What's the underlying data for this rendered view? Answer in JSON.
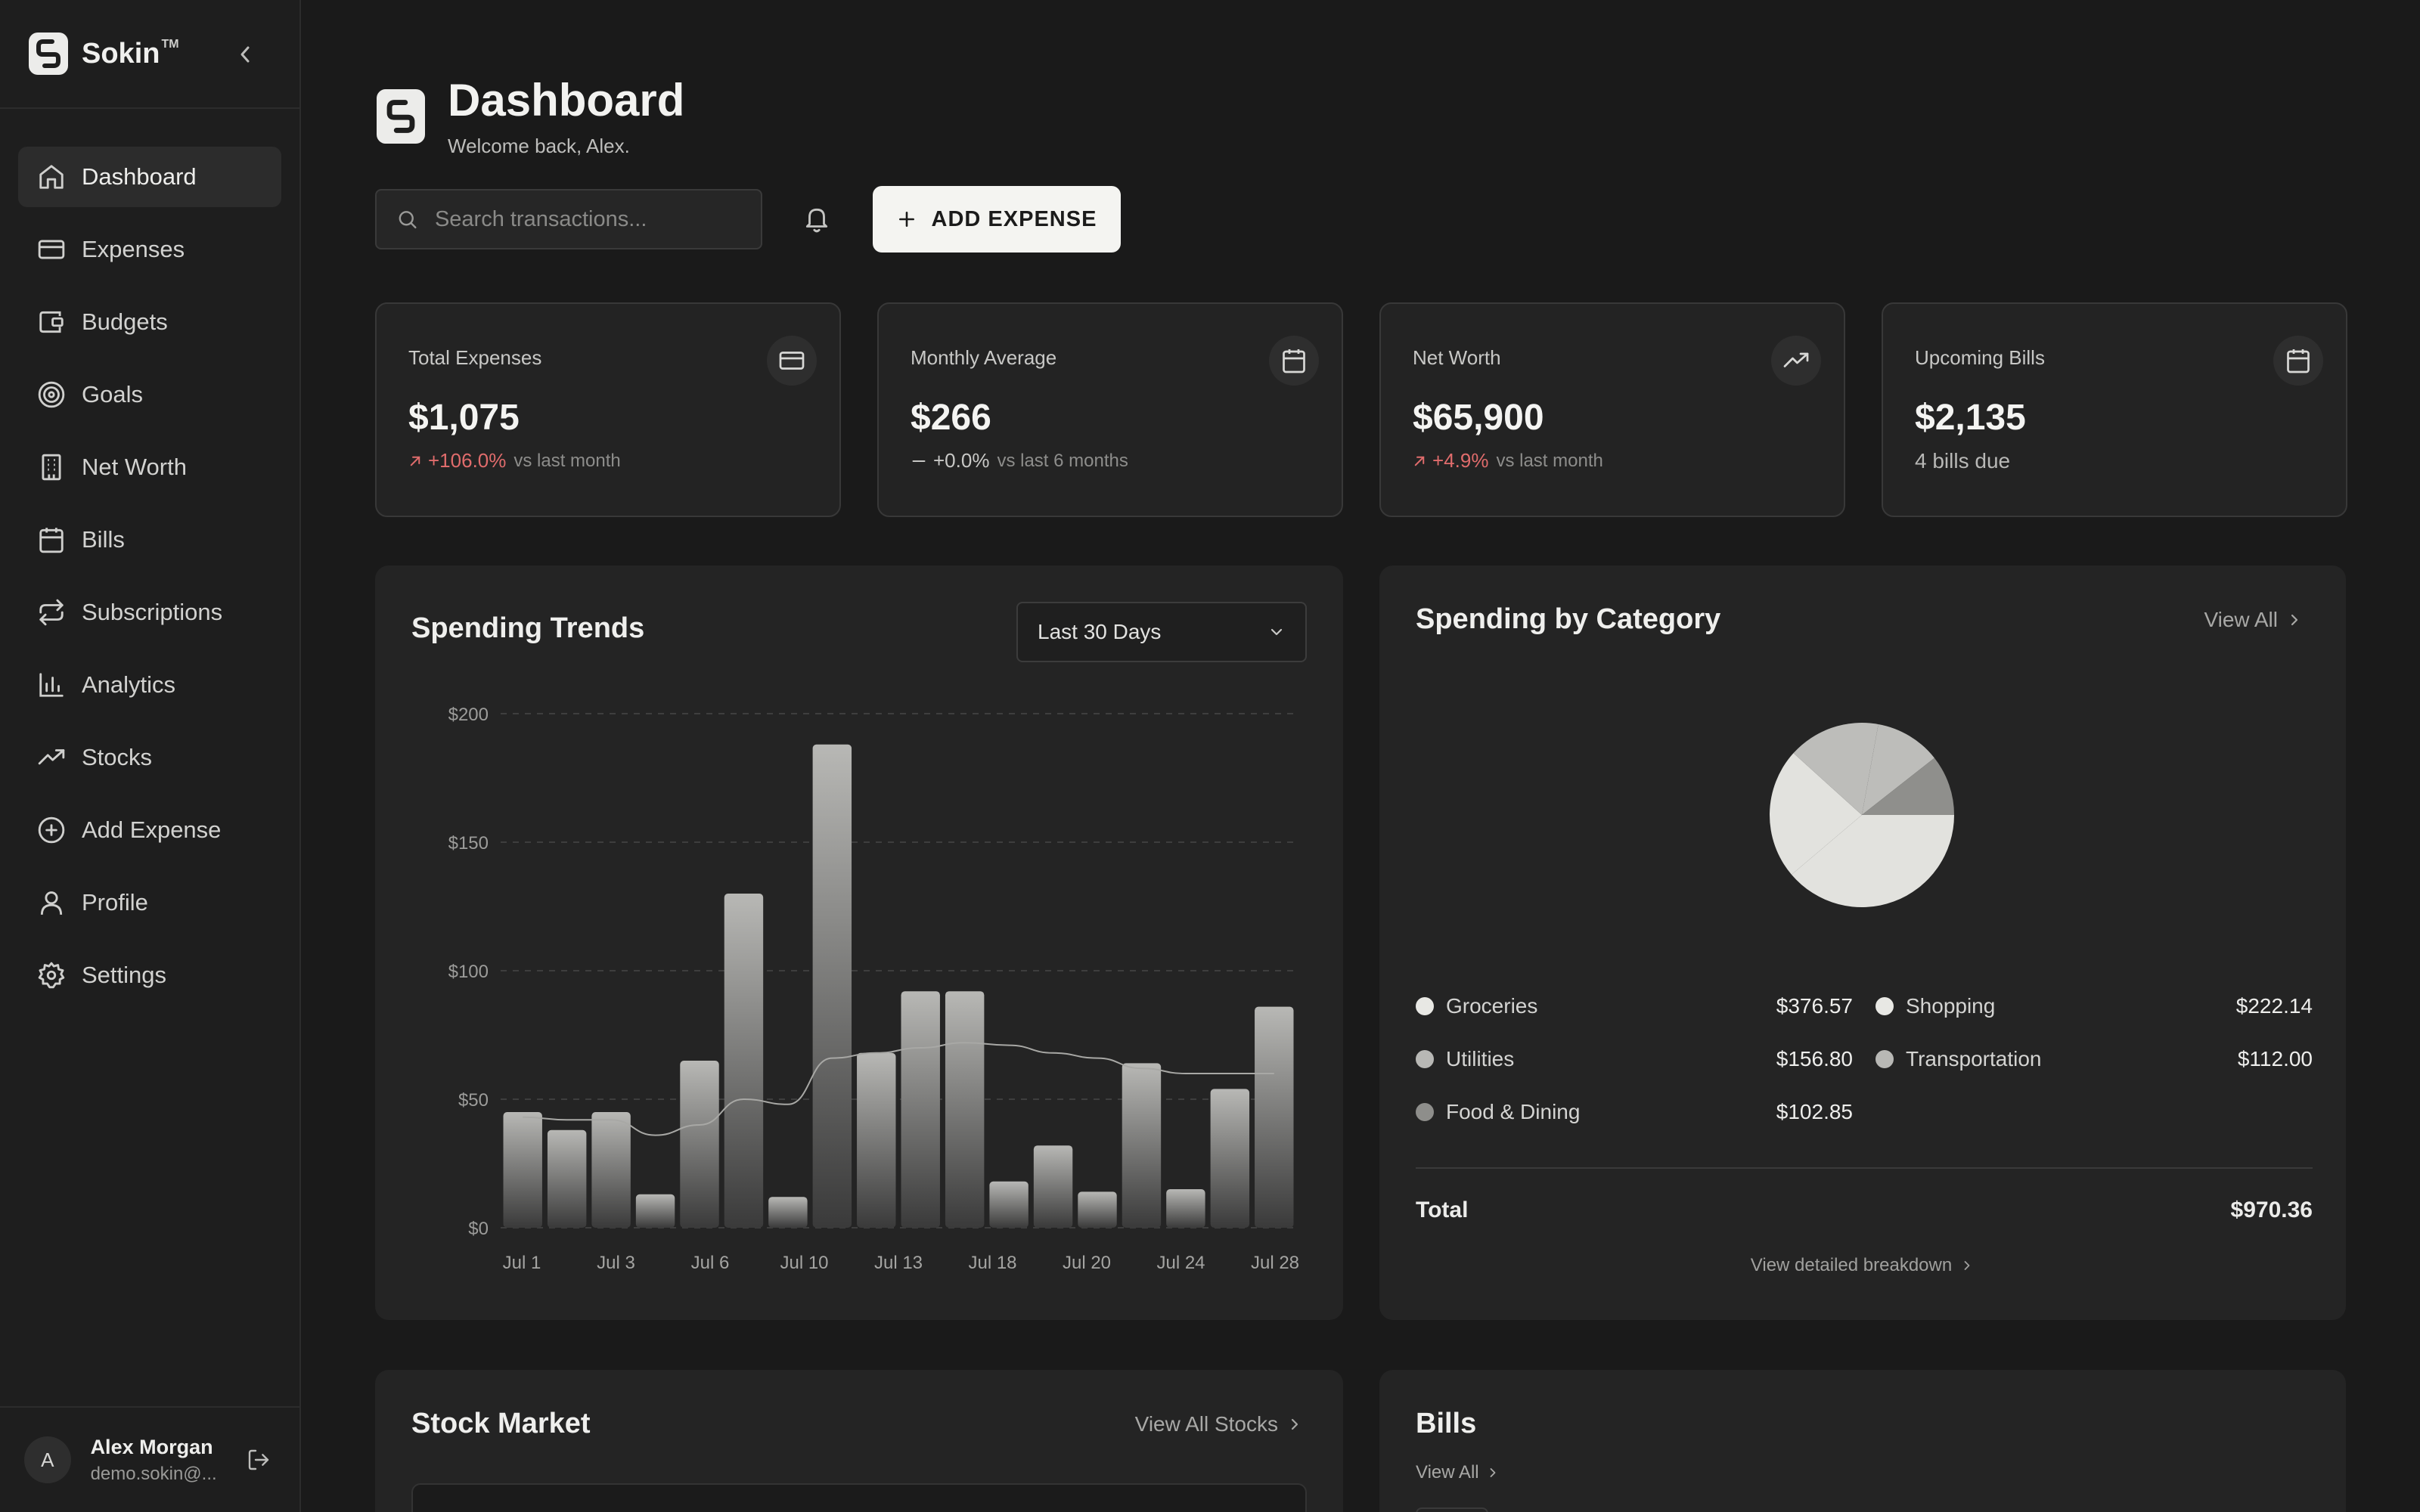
{
  "sidebar": {
    "brand": "Sokin",
    "brand_tm": "TM",
    "items": [
      {
        "label": "Dashboard",
        "icon": "home-icon"
      },
      {
        "label": "Expenses",
        "icon": "credit-card-icon"
      },
      {
        "label": "Budgets",
        "icon": "wallet-icon"
      },
      {
        "label": "Goals",
        "icon": "target-icon"
      },
      {
        "label": "Net Worth",
        "icon": "building-icon"
      },
      {
        "label": "Bills",
        "icon": "calendar-icon"
      },
      {
        "label": "Subscriptions",
        "icon": "repeat-icon"
      },
      {
        "label": "Analytics",
        "icon": "bar-chart-icon"
      },
      {
        "label": "Stocks",
        "icon": "trending-up-icon"
      },
      {
        "label": "Add Expense",
        "icon": "plus-circle-icon"
      },
      {
        "label": "Profile",
        "icon": "user-icon"
      },
      {
        "label": "Settings",
        "icon": "gear-icon"
      }
    ],
    "active_index": 0,
    "user": {
      "initial": "A",
      "name": "Alex Morgan",
      "email": "demo.sokin@..."
    }
  },
  "header": {
    "title": "Dashboard",
    "subtitle": "Welcome back, Alex."
  },
  "toolbar": {
    "search_placeholder": "Search transactions...",
    "add_label": "ADD EXPENSE"
  },
  "stats": [
    {
      "title": "Total Expenses",
      "value": "$1,075",
      "change": "+106.0%",
      "period": "vs last month",
      "trend": "up",
      "icon": "credit-card-icon"
    },
    {
      "title": "Monthly Average",
      "value": "$266",
      "change": "+0.0%",
      "period": "vs last 6 months",
      "trend": "flat",
      "icon": "calendar-icon"
    },
    {
      "title": "Net Worth",
      "value": "$65,900",
      "change": "+4.9%",
      "period": "vs last month",
      "trend": "up",
      "icon": "trending-up-icon"
    },
    {
      "title": "Upcoming Bills",
      "value": "$2,135",
      "sub": "4 bills due",
      "icon": "calendar-icon"
    }
  ],
  "trends": {
    "title": "Spending Trends",
    "range": "Last 30 Days"
  },
  "chart_data": [
    {
      "type": "bar",
      "title": "Spending Trends",
      "y_ticks": [
        "$0",
        "$50",
        "$100",
        "$150",
        "$200"
      ],
      "ylim": [
        0,
        200
      ],
      "x_tick_labels": [
        "Jul 1",
        "Jul 3",
        "Jul 6",
        "Jul 10",
        "Jul 13",
        "Jul 18",
        "Jul 20",
        "Jul 24",
        "Jul 28"
      ],
      "values": [
        45,
        38,
        45,
        13,
        65,
        130,
        12,
        188,
        68,
        92,
        92,
        18,
        32,
        14,
        64,
        15,
        54,
        86
      ],
      "trend_line": [
        43,
        42,
        42,
        36,
        40,
        50,
        48,
        66,
        68,
        70,
        72,
        71,
        68,
        66,
        62,
        60,
        60,
        60
      ],
      "grid": true
    },
    {
      "type": "pie",
      "title": "Spending by Category",
      "slices": [
        {
          "label": "Groceries",
          "value": 376.57,
          "color": "#e2e2de"
        },
        {
          "label": "Shopping",
          "value": 222.14,
          "color": "#e2e2de"
        },
        {
          "label": "Utilities",
          "value": 156.8,
          "color": "#bdbdba"
        },
        {
          "label": "Transportation",
          "value": 112.0,
          "color": "#bdbdba"
        },
        {
          "label": "Food & Dining",
          "value": 102.85,
          "color": "#8f8f8c"
        }
      ]
    }
  ],
  "category": {
    "title": "Spending by Category",
    "view_all": "View All",
    "legend": [
      {
        "name": "Groceries",
        "amount": "$376.57",
        "color": "#e8e8e4"
      },
      {
        "name": "Shopping",
        "amount": "$222.14",
        "color": "#e8e8e4"
      },
      {
        "name": "Utilities",
        "amount": "$156.80",
        "color": "#b8b8b5"
      },
      {
        "name": "Transportation",
        "amount": "$112.00",
        "color": "#b8b8b5"
      },
      {
        "name": "Food & Dining",
        "amount": "$102.85",
        "color": "#8e8e8b"
      }
    ],
    "total_label": "Total",
    "total_value": "$970.36",
    "breakdown_link": "View detailed breakdown"
  },
  "stock": {
    "title": "Stock Market",
    "view_all": "View All Stocks"
  },
  "bills": {
    "title": "Bills",
    "view_all": "View All"
  }
}
